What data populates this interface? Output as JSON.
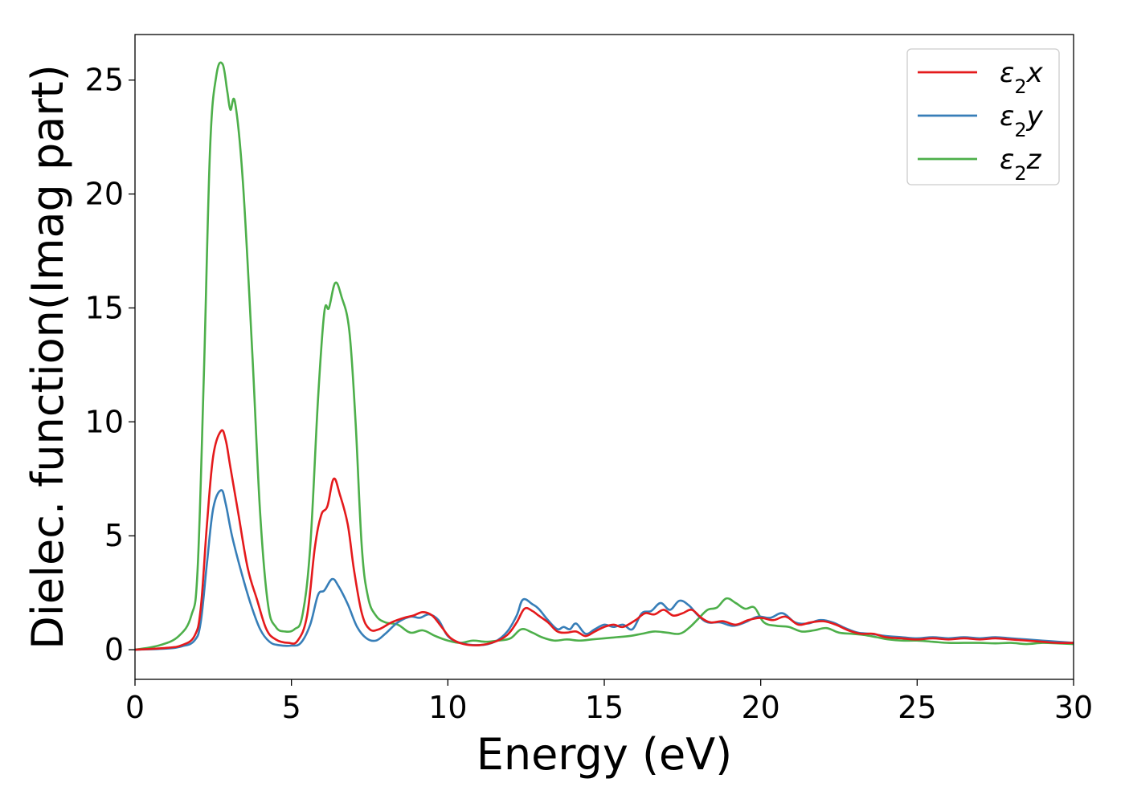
{
  "chart_data": {
    "type": "line",
    "title": "",
    "xlabel": "Energy (eV)",
    "ylabel": "Dielec. function(Imag part)",
    "xlim": [
      0,
      30
    ],
    "ylim": [
      -1.3,
      27
    ],
    "xticks": [
      0,
      5,
      10,
      15,
      20,
      25,
      30
    ],
    "yticks": [
      0,
      5,
      10,
      15,
      20,
      25
    ],
    "grid": false,
    "legend_position": "top-right",
    "series": [
      {
        "name": "ε₂x",
        "legend_main": "ε",
        "legend_sub": "2",
        "legend_suffix": "x",
        "color": "#e41a1c",
        "points": [
          [
            0,
            0
          ],
          [
            1,
            0.08
          ],
          [
            1.5,
            0.2
          ],
          [
            1.9,
            0.6
          ],
          [
            2.1,
            1.8
          ],
          [
            2.3,
            5.5
          ],
          [
            2.5,
            8.5
          ],
          [
            2.75,
            9.6
          ],
          [
            2.9,
            9.2
          ],
          [
            3.05,
            8.0
          ],
          [
            3.3,
            6.0
          ],
          [
            3.6,
            3.6
          ],
          [
            3.9,
            2.2
          ],
          [
            4.2,
            0.9
          ],
          [
            4.5,
            0.45
          ],
          [
            4.9,
            0.3
          ],
          [
            5.2,
            0.4
          ],
          [
            5.5,
            1.5
          ],
          [
            5.75,
            4.5
          ],
          [
            5.95,
            5.9
          ],
          [
            6.15,
            6.3
          ],
          [
            6.35,
            7.5
          ],
          [
            6.55,
            6.8
          ],
          [
            6.8,
            5.5
          ],
          [
            7.0,
            3.5
          ],
          [
            7.25,
            1.6
          ],
          [
            7.5,
            0.9
          ],
          [
            7.8,
            0.9
          ],
          [
            8.2,
            1.2
          ],
          [
            8.6,
            1.4
          ],
          [
            8.9,
            1.5
          ],
          [
            9.2,
            1.65
          ],
          [
            9.5,
            1.5
          ],
          [
            9.8,
            1.0
          ],
          [
            10.1,
            0.5
          ],
          [
            10.5,
            0.25
          ],
          [
            11.0,
            0.2
          ],
          [
            11.5,
            0.35
          ],
          [
            11.9,
            0.65
          ],
          [
            12.2,
            1.2
          ],
          [
            12.45,
            1.8
          ],
          [
            12.7,
            1.7
          ],
          [
            12.9,
            1.5
          ],
          [
            13.2,
            1.2
          ],
          [
            13.5,
            0.8
          ],
          [
            13.8,
            0.75
          ],
          [
            14.1,
            0.8
          ],
          [
            14.4,
            0.6
          ],
          [
            14.7,
            0.8
          ],
          [
            15.0,
            1.0
          ],
          [
            15.3,
            1.1
          ],
          [
            15.6,
            1.0
          ],
          [
            16.0,
            1.3
          ],
          [
            16.3,
            1.6
          ],
          [
            16.6,
            1.55
          ],
          [
            16.9,
            1.75
          ],
          [
            17.2,
            1.5
          ],
          [
            17.5,
            1.6
          ],
          [
            17.8,
            1.75
          ],
          [
            18.1,
            1.4
          ],
          [
            18.4,
            1.2
          ],
          [
            18.8,
            1.25
          ],
          [
            19.2,
            1.1
          ],
          [
            19.6,
            1.3
          ],
          [
            20.0,
            1.4
          ],
          [
            20.4,
            1.3
          ],
          [
            20.8,
            1.45
          ],
          [
            21.2,
            1.1
          ],
          [
            21.6,
            1.2
          ],
          [
            22.0,
            1.25
          ],
          [
            22.4,
            1.1
          ],
          [
            22.8,
            0.85
          ],
          [
            23.2,
            0.7
          ],
          [
            23.6,
            0.7
          ],
          [
            24.0,
            0.55
          ],
          [
            24.5,
            0.5
          ],
          [
            25.0,
            0.45
          ],
          [
            25.5,
            0.5
          ],
          [
            26.0,
            0.45
          ],
          [
            26.5,
            0.5
          ],
          [
            27.0,
            0.45
          ],
          [
            27.5,
            0.5
          ],
          [
            28.0,
            0.45
          ],
          [
            28.5,
            0.4
          ],
          [
            29.0,
            0.35
          ],
          [
            29.5,
            0.3
          ],
          [
            30.0,
            0.3
          ]
        ]
      },
      {
        "name": "ε₂y",
        "legend_main": "ε",
        "legend_sub": "2",
        "legend_suffix": "y",
        "color": "#377eb8",
        "points": [
          [
            0,
            0
          ],
          [
            1,
            0.05
          ],
          [
            1.5,
            0.15
          ],
          [
            1.9,
            0.4
          ],
          [
            2.1,
            1.2
          ],
          [
            2.3,
            3.8
          ],
          [
            2.5,
            6.2
          ],
          [
            2.75,
            7.0
          ],
          [
            2.9,
            6.4
          ],
          [
            3.1,
            5.0
          ],
          [
            3.4,
            3.4
          ],
          [
            3.7,
            2.0
          ],
          [
            4.0,
            0.9
          ],
          [
            4.3,
            0.35
          ],
          [
            4.6,
            0.2
          ],
          [
            5.0,
            0.18
          ],
          [
            5.3,
            0.3
          ],
          [
            5.6,
            1.1
          ],
          [
            5.85,
            2.4
          ],
          [
            6.05,
            2.6
          ],
          [
            6.3,
            3.1
          ],
          [
            6.5,
            2.8
          ],
          [
            6.8,
            2.0
          ],
          [
            7.1,
            1.0
          ],
          [
            7.4,
            0.5
          ],
          [
            7.7,
            0.4
          ],
          [
            8.0,
            0.7
          ],
          [
            8.4,
            1.2
          ],
          [
            8.8,
            1.45
          ],
          [
            9.1,
            1.4
          ],
          [
            9.4,
            1.55
          ],
          [
            9.7,
            1.3
          ],
          [
            10.0,
            0.6
          ],
          [
            10.4,
            0.3
          ],
          [
            11.0,
            0.2
          ],
          [
            11.5,
            0.35
          ],
          [
            11.9,
            0.8
          ],
          [
            12.2,
            1.5
          ],
          [
            12.4,
            2.2
          ],
          [
            12.7,
            2.0
          ],
          [
            12.9,
            1.8
          ],
          [
            13.2,
            1.3
          ],
          [
            13.5,
            0.9
          ],
          [
            13.7,
            1.0
          ],
          [
            13.9,
            0.9
          ],
          [
            14.1,
            1.15
          ],
          [
            14.4,
            0.7
          ],
          [
            14.7,
            0.9
          ],
          [
            15.0,
            1.1
          ],
          [
            15.3,
            1.0
          ],
          [
            15.6,
            1.1
          ],
          [
            15.9,
            0.9
          ],
          [
            16.2,
            1.6
          ],
          [
            16.5,
            1.7
          ],
          [
            16.8,
            2.05
          ],
          [
            17.1,
            1.75
          ],
          [
            17.4,
            2.15
          ],
          [
            17.7,
            1.95
          ],
          [
            18.0,
            1.5
          ],
          [
            18.3,
            1.2
          ],
          [
            18.7,
            1.2
          ],
          [
            19.1,
            1.05
          ],
          [
            19.5,
            1.2
          ],
          [
            19.9,
            1.45
          ],
          [
            20.3,
            1.4
          ],
          [
            20.7,
            1.6
          ],
          [
            21.1,
            1.2
          ],
          [
            21.5,
            1.15
          ],
          [
            21.9,
            1.3
          ],
          [
            22.3,
            1.2
          ],
          [
            22.7,
            0.95
          ],
          [
            23.1,
            0.75
          ],
          [
            23.5,
            0.7
          ],
          [
            24.0,
            0.6
          ],
          [
            24.5,
            0.55
          ],
          [
            25.0,
            0.5
          ],
          [
            25.5,
            0.55
          ],
          [
            26.0,
            0.5
          ],
          [
            26.5,
            0.55
          ],
          [
            27.0,
            0.5
          ],
          [
            27.5,
            0.55
          ],
          [
            28.0,
            0.5
          ],
          [
            28.5,
            0.45
          ],
          [
            29.0,
            0.4
          ],
          [
            29.5,
            0.35
          ],
          [
            30.0,
            0.3
          ]
        ]
      },
      {
        "name": "ε₂z",
        "legend_main": "ε",
        "legend_sub": "2",
        "legend_suffix": "z",
        "color": "#4daf4a",
        "points": [
          [
            0,
            0
          ],
          [
            0.8,
            0.2
          ],
          [
            1.4,
            0.6
          ],
          [
            1.8,
            1.5
          ],
          [
            2.0,
            3.5
          ],
          [
            2.2,
            12
          ],
          [
            2.4,
            22
          ],
          [
            2.6,
            25.2
          ],
          [
            2.8,
            25.7
          ],
          [
            2.95,
            24.5
          ],
          [
            3.05,
            23.7
          ],
          [
            3.2,
            24.0
          ],
          [
            3.45,
            20.5
          ],
          [
            3.75,
            13
          ],
          [
            4.0,
            6
          ],
          [
            4.25,
            2.0
          ],
          [
            4.5,
            1.0
          ],
          [
            4.8,
            0.8
          ],
          [
            5.1,
            0.9
          ],
          [
            5.35,
            1.5
          ],
          [
            5.6,
            4.5
          ],
          [
            5.85,
            11
          ],
          [
            6.05,
            14.8
          ],
          [
            6.2,
            15.0
          ],
          [
            6.4,
            16.1
          ],
          [
            6.6,
            15.5
          ],
          [
            6.85,
            14.0
          ],
          [
            7.05,
            10
          ],
          [
            7.25,
            4.5
          ],
          [
            7.45,
            2.3
          ],
          [
            7.7,
            1.5
          ],
          [
            8.0,
            1.2
          ],
          [
            8.4,
            1.1
          ],
          [
            8.8,
            0.75
          ],
          [
            9.2,
            0.85
          ],
          [
            9.6,
            0.6
          ],
          [
            10.0,
            0.4
          ],
          [
            10.4,
            0.3
          ],
          [
            10.8,
            0.4
          ],
          [
            11.2,
            0.35
          ],
          [
            11.6,
            0.4
          ],
          [
            12.0,
            0.5
          ],
          [
            12.35,
            0.9
          ],
          [
            12.7,
            0.75
          ],
          [
            13.0,
            0.55
          ],
          [
            13.4,
            0.4
          ],
          [
            13.8,
            0.45
          ],
          [
            14.2,
            0.4
          ],
          [
            14.6,
            0.45
          ],
          [
            15.0,
            0.5
          ],
          [
            15.4,
            0.55
          ],
          [
            15.8,
            0.6
          ],
          [
            16.2,
            0.7
          ],
          [
            16.6,
            0.8
          ],
          [
            17.0,
            0.75
          ],
          [
            17.4,
            0.7
          ],
          [
            17.7,
            0.95
          ],
          [
            18.0,
            1.35
          ],
          [
            18.3,
            1.75
          ],
          [
            18.6,
            1.85
          ],
          [
            18.9,
            2.25
          ],
          [
            19.2,
            2.05
          ],
          [
            19.5,
            1.8
          ],
          [
            19.8,
            1.85
          ],
          [
            20.1,
            1.2
          ],
          [
            20.5,
            1.05
          ],
          [
            20.9,
            1.0
          ],
          [
            21.3,
            0.8
          ],
          [
            21.7,
            0.85
          ],
          [
            22.1,
            0.95
          ],
          [
            22.5,
            0.75
          ],
          [
            22.9,
            0.7
          ],
          [
            23.3,
            0.65
          ],
          [
            23.7,
            0.55
          ],
          [
            24.1,
            0.45
          ],
          [
            24.5,
            0.4
          ],
          [
            25.0,
            0.4
          ],
          [
            25.5,
            0.35
          ],
          [
            26.0,
            0.3
          ],
          [
            26.5,
            0.3
          ],
          [
            27.0,
            0.3
          ],
          [
            27.5,
            0.28
          ],
          [
            28.0,
            0.3
          ],
          [
            28.5,
            0.25
          ],
          [
            29.0,
            0.3
          ],
          [
            29.5,
            0.28
          ],
          [
            30.0,
            0.25
          ]
        ]
      }
    ]
  }
}
